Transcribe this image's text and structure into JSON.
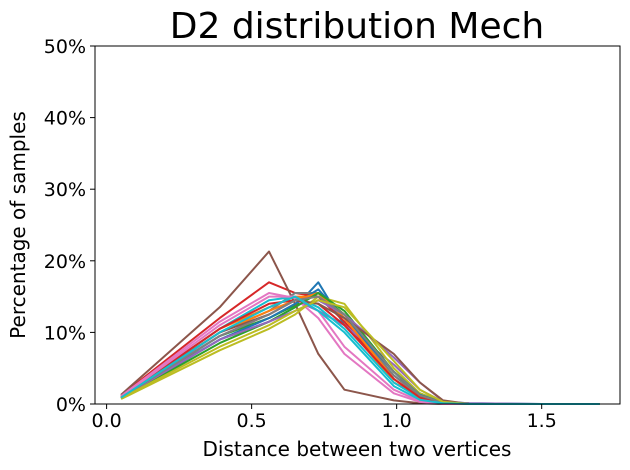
{
  "chart_data": {
    "type": "line",
    "title": "D2 distribution Mech",
    "xlabel": "Distance between two vertices",
    "ylabel": "Percentage of samples",
    "xlim": [
      -0.04,
      1.77
    ],
    "ylim": [
      0,
      50
    ],
    "xticks": [
      0.0,
      0.5,
      1.0,
      1.5
    ],
    "xtick_labels": [
      "0.0",
      "0.5",
      "1.0",
      "1.5"
    ],
    "yticks": [
      0,
      10,
      20,
      30,
      40,
      50
    ],
    "ytick_labels": [
      "0%",
      "10%",
      "20%",
      "30%",
      "40%",
      "50%"
    ],
    "grid": false,
    "x": [
      0.05,
      0.39,
      0.56,
      0.65,
      0.73,
      0.82,
      0.99,
      1.08,
      1.16,
      1.25,
      1.5,
      1.7
    ],
    "series": [
      {
        "color": "#1f77b4",
        "values": [
          1.0,
          9.0,
          11.5,
          13.5,
          17.0,
          11.0,
          4.0,
          1.2,
          0.3,
          0.1,
          0.0,
          0.0
        ]
      },
      {
        "color": "#ff7f0e",
        "values": [
          1.0,
          10.5,
          13.5,
          15.0,
          15.0,
          11.5,
          3.0,
          1.0,
          0.2,
          0.0,
          0.0,
          0.0
        ]
      },
      {
        "color": "#2ca02c",
        "values": [
          0.8,
          9.5,
          12.0,
          13.8,
          15.5,
          12.5,
          4.5,
          1.5,
          0.3,
          0.0,
          0.0,
          0.0
        ]
      },
      {
        "color": "#d62728",
        "values": [
          1.2,
          12.0,
          17.0,
          15.5,
          15.0,
          11.5,
          3.5,
          0.8,
          0.2,
          0.0,
          0.0,
          0.0
        ]
      },
      {
        "color": "#9467bd",
        "values": [
          1.0,
          9.5,
          12.5,
          14.5,
          13.0,
          11.0,
          5.5,
          2.0,
          0.3,
          0.1,
          0.0,
          0.0
        ]
      },
      {
        "color": "#8c564b",
        "values": [
          1.3,
          13.5,
          21.3,
          14.0,
          7.0,
          2.0,
          0.5,
          0.1,
          0.0,
          0.0,
          0.0,
          0.0
        ]
      },
      {
        "color": "#e377c2",
        "values": [
          1.1,
          11.5,
          15.5,
          14.8,
          12.0,
          7.0,
          1.5,
          0.3,
          0.0,
          0.0,
          0.0,
          0.0
        ]
      },
      {
        "color": "#7f7f7f",
        "values": [
          0.9,
          10.0,
          13.0,
          15.5,
          15.5,
          12.0,
          4.0,
          1.0,
          0.2,
          0.0,
          0.0,
          0.0
        ]
      },
      {
        "color": "#bcbd22",
        "values": [
          0.7,
          7.5,
          10.5,
          12.5,
          15.0,
          14.0,
          5.0,
          1.5,
          0.3,
          0.0,
          0.0,
          0.0
        ]
      },
      {
        "color": "#17becf",
        "values": [
          0.9,
          10.5,
          14.5,
          15.0,
          13.5,
          10.5,
          3.0,
          0.8,
          0.1,
          0.0,
          0.0,
          0.0
        ]
      },
      {
        "color": "#1f77b4",
        "values": [
          0.8,
          9.0,
          12.0,
          14.0,
          16.0,
          12.0,
          4.5,
          1.3,
          0.2,
          0.0,
          0.0,
          0.0
        ]
      },
      {
        "color": "#ff7f0e",
        "values": [
          1.0,
          10.0,
          13.0,
          14.5,
          15.5,
          12.0,
          3.5,
          0.9,
          0.1,
          0.0,
          0.0,
          0.0
        ]
      },
      {
        "color": "#2ca02c",
        "values": [
          0.8,
          8.5,
          11.5,
          13.5,
          15.5,
          13.0,
          4.5,
          1.2,
          0.2,
          0.0,
          0.0,
          0.0
        ]
      },
      {
        "color": "#d62728",
        "values": [
          1.0,
          10.5,
          14.0,
          14.5,
          14.0,
          11.0,
          3.5,
          0.9,
          0.1,
          0.0,
          0.0,
          0.0
        ]
      },
      {
        "color": "#9467bd",
        "values": [
          0.9,
          9.0,
          11.5,
          13.0,
          14.5,
          12.5,
          6.5,
          3.0,
          0.4,
          0.0,
          0.0,
          0.0
        ]
      },
      {
        "color": "#8c564b",
        "values": [
          1.0,
          10.0,
          12.5,
          14.5,
          14.0,
          12.0,
          7.0,
          3.0,
          0.5,
          0.0,
          0.0,
          0.0
        ]
      },
      {
        "color": "#e377c2",
        "values": [
          1.0,
          11.0,
          15.0,
          15.0,
          13.0,
          8.0,
          2.0,
          0.4,
          0.0,
          0.0,
          0.0,
          0.0
        ]
      },
      {
        "color": "#7f7f7f",
        "values": [
          0.9,
          9.5,
          12.5,
          14.5,
          15.0,
          12.5,
          4.5,
          1.2,
          0.2,
          0.0,
          0.0,
          0.0
        ]
      },
      {
        "color": "#bcbd22",
        "values": [
          0.8,
          8.0,
          11.0,
          13.0,
          14.5,
          13.5,
          6.0,
          2.0,
          0.3,
          0.0,
          0.0,
          0.0
        ]
      },
      {
        "color": "#17becf",
        "values": [
          0.9,
          10.0,
          13.5,
          15.0,
          13.0,
          10.0,
          2.5,
          0.6,
          0.1,
          0.0,
          0.0,
          0.0
        ]
      }
    ]
  }
}
